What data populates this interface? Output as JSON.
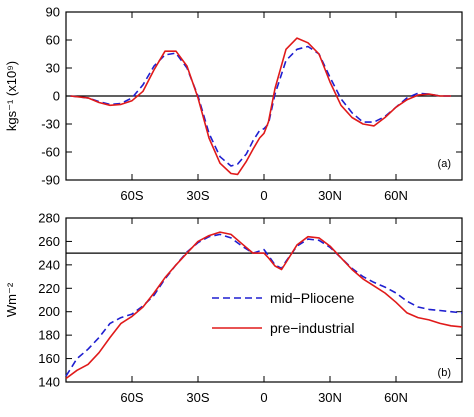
{
  "chart_data": [
    {
      "type": "line",
      "panel_label": "(a)",
      "ylabel": "kgs⁻¹ (x10⁹)",
      "xlim": [
        -90,
        90
      ],
      "ylim": [
        -90,
        90
      ],
      "yticks": [
        -90,
        -60,
        -30,
        0,
        30,
        60,
        90
      ],
      "xticks": [
        {
          "value": -60,
          "label": "60S"
        },
        {
          "value": -30,
          "label": "30S"
        },
        {
          "value": 0,
          "label": "0"
        },
        {
          "value": 30,
          "label": "30N"
        },
        {
          "value": 60,
          "label": "60N"
        }
      ],
      "reference_line": 0,
      "series": [
        {
          "name": "mid−Pliocene",
          "color": "#1f1fd0",
          "dash": "dashed",
          "x": [
            -88,
            -80,
            -75,
            -70,
            -65,
            -60,
            -55,
            -50,
            -45,
            -40,
            -35,
            -30,
            -25,
            -20,
            -15,
            -12,
            -8,
            -5,
            -2,
            0,
            2,
            5,
            10,
            15,
            20,
            25,
            30,
            35,
            40,
            45,
            50,
            55,
            60,
            65,
            70,
            75,
            80,
            85
          ],
          "y": [
            0,
            -2,
            -6,
            -9,
            -8,
            -2,
            12,
            32,
            44,
            46,
            30,
            0,
            -40,
            -65,
            -75,
            -73,
            -62,
            -48,
            -37,
            -35,
            -30,
            2,
            38,
            50,
            53,
            45,
            20,
            -3,
            -18,
            -28,
            -28,
            -22,
            -12,
            -2,
            3,
            2,
            0,
            0
          ]
        },
        {
          "name": "pre−industrial",
          "color": "#e01a1a",
          "dash": "solid",
          "x": [
            -88,
            -80,
            -75,
            -70,
            -65,
            -60,
            -55,
            -50,
            -45,
            -40,
            -35,
            -30,
            -25,
            -20,
            -15,
            -12,
            -8,
            -5,
            -2,
            0,
            2,
            5,
            10,
            15,
            20,
            25,
            30,
            35,
            40,
            45,
            50,
            55,
            60,
            65,
            70,
            75,
            80,
            85
          ],
          "y": [
            0,
            -2,
            -7,
            -10,
            -9,
            -5,
            5,
            28,
            48,
            48,
            32,
            -2,
            -45,
            -72,
            -83,
            -84,
            -70,
            -57,
            -45,
            -40,
            -28,
            8,
            50,
            62,
            57,
            45,
            15,
            -10,
            -23,
            -30,
            -32,
            -23,
            -12,
            -4,
            1,
            2,
            0,
            0
          ]
        }
      ]
    },
    {
      "type": "line",
      "panel_label": "(b)",
      "ylabel": "Wm⁻²",
      "xlim": [
        -90,
        90
      ],
      "ylim": [
        140,
        280
      ],
      "yticks": [
        140,
        160,
        180,
        200,
        220,
        240,
        260,
        280
      ],
      "xticks": [
        {
          "value": -60,
          "label": "60S"
        },
        {
          "value": -30,
          "label": "30S"
        },
        {
          "value": 0,
          "label": "0"
        },
        {
          "value": 30,
          "label": "30N"
        },
        {
          "value": 60,
          "label": "60N"
        }
      ],
      "reference_line": 250,
      "legend": {
        "position": "center-right"
      },
      "series": [
        {
          "name": "mid−Pliocene",
          "color": "#1f1fd0",
          "dash": "dashed",
          "x": [
            -90,
            -85,
            -80,
            -75,
            -70,
            -65,
            -60,
            -55,
            -50,
            -45,
            -40,
            -35,
            -30,
            -25,
            -20,
            -15,
            -10,
            -5,
            0,
            2,
            5,
            8,
            10,
            15,
            20,
            25,
            30,
            35,
            40,
            45,
            50,
            55,
            60,
            65,
            70,
            75,
            80,
            85,
            90
          ],
          "y": [
            145,
            160,
            168,
            178,
            190,
            195,
            198,
            205,
            214,
            228,
            240,
            251,
            259,
            264,
            266,
            263,
            256,
            250,
            253,
            248,
            240,
            237,
            243,
            256,
            262,
            261,
            255,
            246,
            237,
            230,
            225,
            221,
            216,
            209,
            204,
            202,
            201,
            200,
            199
          ]
        },
        {
          "name": "pre−industrial",
          "color": "#e01a1a",
          "dash": "solid",
          "x": [
            -90,
            -85,
            -80,
            -75,
            -70,
            -65,
            -60,
            -55,
            -50,
            -45,
            -40,
            -35,
            -30,
            -25,
            -20,
            -15,
            -10,
            -5,
            0,
            2,
            5,
            8,
            10,
            15,
            20,
            25,
            30,
            35,
            40,
            45,
            50,
            55,
            60,
            65,
            70,
            75,
            80,
            85,
            90
          ],
          "y": [
            143,
            150,
            155,
            165,
            178,
            190,
            196,
            204,
            216,
            229,
            240,
            250,
            260,
            265,
            268,
            266,
            258,
            250,
            250,
            246,
            239,
            236,
            242,
            257,
            264,
            263,
            256,
            246,
            236,
            228,
            222,
            216,
            208,
            199,
            195,
            193,
            190,
            188,
            187
          ]
        }
      ]
    }
  ]
}
